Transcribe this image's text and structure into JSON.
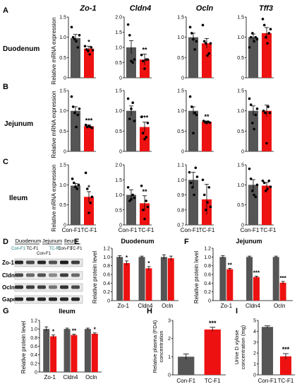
{
  "colors": {
    "con": "#555555",
    "tc": "#ee1111",
    "pink": "#ff66cc",
    "dot": "#000000"
  },
  "panel_letters": {
    "A": "A",
    "B": "B",
    "C": "C",
    "D": "D",
    "E": "E",
    "F": "F",
    "G": "G",
    "H": "H",
    "I": "I"
  },
  "row_labels": {
    "A": "Duodenum",
    "B": "Jejunum",
    "C": "Ileum"
  },
  "col_titles": [
    "Zo-1",
    "Cldn4",
    "Ocln",
    "Tff3"
  ],
  "ylabel_rna": "Relative mRNA expression",
  "groups": [
    "Con-F1",
    "TC-F1"
  ],
  "blot": {
    "tissues": [
      "Duodenum",
      "Jejunum",
      "Ileum"
    ],
    "lane_labels": [
      "Con-F1",
      "TC-F1",
      "Con-F1",
      "TC-F1",
      "Con-F1",
      "TC-F1"
    ],
    "proteins": [
      "Zo-1",
      "Cldn4",
      "Ocln",
      "Gapdh"
    ]
  },
  "chart_data": [
    {
      "type": "bar",
      "title": "Zo-1",
      "tissue": "Duodenum",
      "categories": [
        "Con-F1",
        "TC-F1"
      ],
      "values": [
        0.98,
        0.72
      ],
      "errors": [
        0.09,
        0.06
      ],
      "sig": "*",
      "ylim": [
        0,
        1.5
      ],
      "yticks": [
        0,
        0.5,
        1.0,
        1.5
      ],
      "ylabel": "Relative mRNA expression",
      "points": [
        [
          1.25,
          1.0,
          0.95,
          0.9,
          0.75,
          1.05
        ],
        [
          0.78,
          0.7,
          0.66,
          0.58,
          0.75,
          0.68
        ]
      ]
    },
    {
      "type": "bar",
      "title": "Cldn4",
      "tissue": "Duodenum",
      "categories": [
        "Con-F1",
        "TC-F1"
      ],
      "values": [
        1.0,
        0.6
      ],
      "errors": [
        0.22,
        0.18
      ],
      "sig": "**",
      "ylim": [
        0,
        2.0
      ],
      "yticks": [
        0,
        0.5,
        1.0,
        1.5,
        2.0
      ],
      "points": [
        [
          1.75,
          1.4,
          0.55,
          0.5,
          0.6
        ],
        [
          0.75,
          0.55,
          0.3,
          0.6,
          0.6
        ]
      ]
    },
    {
      "type": "bar",
      "title": "Ocln",
      "tissue": "Duodenum",
      "categories": [
        "Con-F1",
        "TC-F1"
      ],
      "values": [
        1.0,
        0.85
      ],
      "errors": [
        0.1,
        0.12
      ],
      "sig": "",
      "ylim": [
        0,
        1.5
      ],
      "yticks": [
        0,
        0.5,
        1.0,
        1.5
      ],
      "points": [
        [
          1.25,
          1.1,
          0.95,
          0.7,
          0.9
        ],
        [
          1.3,
          0.9,
          0.85,
          0.55,
          0.6,
          0.85
        ]
      ]
    },
    {
      "type": "bar",
      "title": "Tff3",
      "tissue": "Duodenum",
      "categories": [
        "Con-F1",
        "TC-F1"
      ],
      "values": [
        1.0,
        1.1
      ],
      "errors": [
        0.08,
        0.14
      ],
      "sig": "",
      "ylim": [
        0,
        1.5
      ],
      "yticks": [
        0,
        0.5,
        1.0,
        1.5
      ],
      "points": [
        [
          0.75,
          1.0,
          1.1,
          0.9,
          1.0,
          0.95
        ],
        [
          1.45,
          1.3,
          1.0,
          0.85,
          1.1,
          1.2
        ]
      ]
    },
    {
      "type": "bar",
      "title": "Zo-1",
      "tissue": "Jejunum",
      "categories": [
        "Con-F1",
        "TC-F1"
      ],
      "values": [
        1.0,
        0.62
      ],
      "errors": [
        0.1,
        0.03
      ],
      "sig": "***",
      "ylim": [
        0,
        1.5
      ],
      "yticks": [
        0,
        0.5,
        1.0,
        1.5
      ],
      "ylabel": "Relative mRNA expression",
      "points": [
        [
          1.35,
          1.1,
          0.95,
          0.6,
          0.9,
          1.05
        ],
        [
          0.65,
          0.6,
          0.63,
          0.6,
          0.58
        ]
      ]
    },
    {
      "type": "bar",
      "title": "Cldn4",
      "tissue": "Jejunum",
      "categories": [
        "Con-F1",
        "TC-F1"
      ],
      "values": [
        1.0,
        0.6
      ],
      "errors": [
        0.12,
        0.12
      ],
      "sig": "***",
      "ylim": [
        0,
        1.5
      ],
      "yticks": [
        0,
        0.5,
        1.0,
        1.5
      ],
      "points": [
        [
          1.3,
          0.8,
          1.05,
          1.2,
          0.75
        ],
        [
          0.85,
          0.45,
          0.3,
          0.35,
          0.7
        ]
      ]
    },
    {
      "type": "bar",
      "title": "Ocln",
      "tissue": "Jejunum",
      "categories": [
        "Con-F1",
        "TC-F1"
      ],
      "values": [
        1.0,
        0.73
      ],
      "errors": [
        0.1,
        0.02
      ],
      "sig": "**",
      "ylim": [
        0,
        1.5
      ],
      "yticks": [
        0,
        0.5,
        1.0,
        1.5
      ],
      "points": [
        [
          1.35,
          1.1,
          0.45,
          0.95,
          0.9
        ],
        [
          0.75,
          0.72,
          0.7,
          0.73,
          0.71
        ]
      ]
    },
    {
      "type": "bar",
      "title": "Tff3",
      "tissue": "Jejunum",
      "categories": [
        "Con-F1",
        "TC-F1"
      ],
      "values": [
        1.0,
        1.0
      ],
      "errors": [
        0.12,
        0.14
      ],
      "sig": "",
      "ylim": [
        0,
        1.5
      ],
      "yticks": [
        0,
        0.5,
        1.0,
        1.5
      ],
      "points": [
        [
          1.3,
          1.15,
          0.7,
          0.55,
          0.9,
          1.05
        ],
        [
          1.0,
          0.95,
          0.2,
          1.1,
          0.95
        ]
      ]
    },
    {
      "type": "bar",
      "title": "Zo-1",
      "tissue": "Ileum",
      "categories": [
        "Con-F1",
        "TC-F1"
      ],
      "values": [
        0.98,
        0.7
      ],
      "errors": [
        0.05,
        0.13
      ],
      "sig": "*",
      "ylim": [
        0,
        1.5
      ],
      "yticks": [
        0,
        0.5,
        1.0,
        1.5
      ],
      "ylabel": "Relative mRNA expression",
      "points": [
        [
          1.15,
          1.05,
          0.95,
          0.9,
          1.0
        ],
        [
          1.3,
          0.9,
          0.3,
          0.55,
          0.7
        ]
      ]
    },
    {
      "type": "bar",
      "title": "Cldn4",
      "tissue": "Ileum",
      "categories": [
        "Con-F1",
        "TC-F1"
      ],
      "values": [
        1.0,
        0.72
      ],
      "errors": [
        0.17,
        0.25
      ],
      "sig": "**",
      "ylim": [
        0,
        2.0
      ],
      "yticks": [
        0,
        0.5,
        1.0,
        1.5,
        2.0
      ],
      "points": [
        [
          1.25,
          0.8,
          0.85,
          1.0,
          0.9
        ],
        [
          1.3,
          0.5,
          0.2,
          0.8,
          0.6
        ]
      ]
    },
    {
      "type": "bar",
      "title": "Ocln",
      "tissue": "Ileum",
      "categories": [
        "Con-F1",
        "TC-F1"
      ],
      "values": [
        1.0,
        0.87
      ],
      "errors": [
        0.05,
        0.1
      ],
      "sig": "",
      "ylim": [
        0.7,
        1.1
      ],
      "yticks": [
        0.7,
        0.8,
        0.9,
        1.0,
        1.1
      ],
      "points": [
        [
          1.05,
          0.98,
          0.95,
          0.9,
          1.08,
          1.02
        ],
        [
          1.0,
          0.9,
          0.8,
          0.85,
          0.95,
          0.82
        ]
      ]
    },
    {
      "type": "bar",
      "title": "Tff3",
      "tissue": "Ileum",
      "categories": [
        "Con-F1",
        "TC-F1"
      ],
      "values": [
        1.0,
        0.98
      ],
      "errors": [
        0.13,
        0.08
      ],
      "sig": "",
      "ylim": [
        0,
        1.5
      ],
      "yticks": [
        0,
        0.5,
        1.0,
        1.5
      ],
      "points": [
        [
          1.4,
          1.15,
          0.85,
          0.75,
          0.7,
          1.0
        ],
        [
          1.1,
          1.05,
          0.85,
          0.9,
          1.1,
          0.95
        ]
      ]
    },
    {
      "type": "bar",
      "title": "Duodenum",
      "panel": "E",
      "ylabel": "Relative protein level",
      "categories": [
        "Zo-1",
        "Cldn4",
        "Ocln"
      ],
      "series": [
        {
          "name": "Con-F1",
          "values": [
            1.0,
            1.0,
            1.0
          ]
        },
        {
          "name": "TC-F1",
          "values": [
            0.86,
            0.74,
            0.97
          ]
        }
      ],
      "errors": [
        [
          0.03,
          0.02,
          0.05
        ],
        [
          0.05,
          0.04,
          0.05
        ]
      ],
      "sig": [
        "*",
        "*",
        ""
      ],
      "ylim": [
        0,
        1.2
      ],
      "yticks": [
        0,
        0.2,
        0.4,
        0.6,
        0.8,
        1.0,
        1.2
      ]
    },
    {
      "type": "bar",
      "title": "Jejunum",
      "panel": "F",
      "ylabel": "Relative protein level",
      "categories": [
        "Zo-1",
        "Cldn4",
        "Ocln"
      ],
      "series": [
        {
          "name": "Con-F1",
          "values": [
            1.0,
            1.0,
            1.0
          ]
        },
        {
          "name": "TC-F1",
          "values": [
            0.72,
            0.54,
            0.41
          ]
        }
      ],
      "errors": [
        [
          0.03,
          0.02,
          0.02
        ],
        [
          0.02,
          0.02,
          0.03
        ]
      ],
      "sig": [
        "**",
        "***",
        "***"
      ],
      "ylim": [
        0,
        1.2
      ],
      "yticks": [
        0,
        0.2,
        0.4,
        0.6,
        0.8,
        1.0,
        1.2
      ]
    },
    {
      "type": "bar",
      "title": "Ileum",
      "panel": "G",
      "ylabel": "Relative protein level",
      "categories": [
        "Zo-1",
        "Cldn4",
        "Ocln"
      ],
      "series": [
        {
          "name": "Con-F1",
          "values": [
            1.0,
            1.0,
            1.0
          ]
        },
        {
          "name": "TC-F1",
          "values": [
            0.83,
            0.86,
            0.89
          ]
        }
      ],
      "errors": [
        [
          0.05,
          0.02,
          0.02
        ],
        [
          0.03,
          0.02,
          0.02
        ]
      ],
      "sig": [
        "*",
        "**",
        "*"
      ],
      "ylim": [
        0,
        1.2
      ],
      "yticks": [
        0,
        0.2,
        0.4,
        0.6,
        0.8,
        1.0,
        1.2
      ]
    },
    {
      "type": "bar",
      "title": "",
      "panel": "H",
      "ylabel": "Relative plasma (FD4) concentration",
      "categories": [
        "Con-F1",
        "TC-F1"
      ],
      "values": [
        1.0,
        2.5
      ],
      "errors": [
        0.15,
        0.12
      ],
      "sig": "***",
      "ylim": [
        0,
        3
      ],
      "yticks": [
        0,
        1,
        2,
        3
      ]
    },
    {
      "type": "bar",
      "title": "",
      "panel": "I",
      "ylabel": "Urine D xylose concentration (mg)",
      "categories": [
        "Con-F1",
        "TC-F1"
      ],
      "values": [
        4.4,
        1.7
      ],
      "errors": [
        0.1,
        0.25
      ],
      "sig": "***",
      "ylim": [
        0,
        5
      ],
      "yticks": [
        0,
        1,
        2,
        3,
        4,
        5
      ]
    }
  ]
}
